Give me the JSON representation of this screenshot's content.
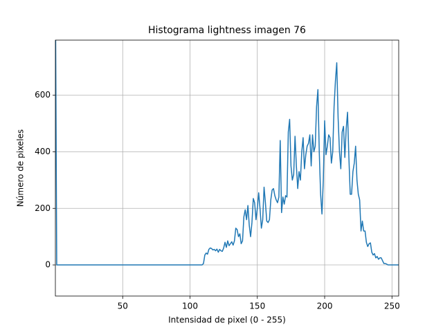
{
  "chart_data": {
    "type": "line",
    "title": "Histograma lightness imagen 76",
    "xlabel": "Intensidad de pixel (0 - 255)",
    "ylabel": "Número de pixeles",
    "color": "#1f77b4",
    "grid": true,
    "xlim": [
      0,
      255
    ],
    "xticks": [
      50,
      100,
      150,
      200,
      250
    ],
    "ylim": [
      -110,
      795
    ],
    "yticks": [
      0,
      200,
      400,
      600
    ],
    "x": [
      0,
      1,
      2,
      3,
      4,
      5,
      6,
      7,
      8,
      9,
      10,
      11,
      12,
      13,
      14,
      15,
      16,
      17,
      18,
      19,
      20,
      21,
      22,
      23,
      24,
      25,
      26,
      27,
      28,
      29,
      30,
      31,
      32,
      33,
      34,
      35,
      36,
      37,
      38,
      39,
      40,
      41,
      42,
      43,
      44,
      45,
      46,
      47,
      48,
      49,
      50,
      51,
      52,
      53,
      54,
      55,
      56,
      57,
      58,
      59,
      60,
      61,
      62,
      63,
      64,
      65,
      66,
      67,
      68,
      69,
      70,
      71,
      72,
      73,
      74,
      75,
      76,
      77,
      78,
      79,
      80,
      81,
      82,
      83,
      84,
      85,
      86,
      87,
      88,
      89,
      90,
      91,
      92,
      93,
      94,
      95,
      96,
      97,
      98,
      99,
      100,
      101,
      102,
      103,
      104,
      105,
      106,
      107,
      108,
      109,
      110,
      111,
      112,
      113,
      114,
      115,
      116,
      117,
      118,
      119,
      120,
      121,
      122,
      123,
      124,
      125,
      126,
      127,
      128,
      129,
      130,
      131,
      132,
      133,
      134,
      135,
      136,
      137,
      138,
      139,
      140,
      141,
      142,
      143,
      144,
      145,
      146,
      147,
      148,
      149,
      150,
      151,
      152,
      153,
      154,
      155,
      156,
      157,
      158,
      159,
      160,
      161,
      162,
      163,
      164,
      165,
      166,
      167,
      168,
      169,
      170,
      171,
      172,
      173,
      174,
      175,
      176,
      177,
      178,
      179,
      180,
      181,
      182,
      183,
      184,
      185,
      186,
      187,
      188,
      189,
      190,
      191,
      192,
      193,
      194,
      195,
      196,
      197,
      198,
      199,
      200,
      201,
      202,
      203,
      204,
      205,
      206,
      207,
      208,
      209,
      210,
      211,
      212,
      213,
      214,
      215,
      216,
      217,
      218,
      219,
      220,
      221,
      222,
      223,
      224,
      225,
      226,
      227,
      228,
      229,
      230,
      231,
      232,
      233,
      234,
      235,
      236,
      237,
      238,
      239,
      240,
      241,
      242,
      243,
      244,
      245,
      246,
      247,
      248,
      249,
      250,
      251,
      252,
      253,
      254,
      255
    ],
    "values": [
      1000,
      0,
      0,
      0,
      0,
      0,
      0,
      0,
      0,
      0,
      0,
      0,
      0,
      0,
      0,
      0,
      0,
      0,
      0,
      0,
      0,
      0,
      0,
      0,
      0,
      0,
      0,
      0,
      0,
      0,
      0,
      0,
      0,
      0,
      0,
      0,
      0,
      0,
      0,
      0,
      0,
      0,
      0,
      0,
      0,
      0,
      0,
      0,
      0,
      0,
      0,
      0,
      0,
      0,
      0,
      0,
      0,
      0,
      0,
      0,
      0,
      0,
      0,
      0,
      0,
      0,
      0,
      0,
      0,
      0,
      0,
      0,
      0,
      0,
      0,
      0,
      0,
      0,
      0,
      0,
      0,
      0,
      0,
      0,
      0,
      0,
      0,
      0,
      0,
      0,
      0,
      0,
      0,
      0,
      0,
      0,
      0,
      0,
      0,
      0,
      0,
      0,
      0,
      0,
      0,
      0,
      0,
      0,
      0,
      0,
      5,
      35,
      42,
      38,
      55,
      60,
      58,
      53,
      55,
      50,
      56,
      45,
      55,
      50,
      48,
      60,
      80,
      62,
      85,
      68,
      75,
      82,
      70,
      85,
      130,
      125,
      100,
      110,
      75,
      85,
      170,
      195,
      160,
      210,
      140,
      100,
      150,
      235,
      220,
      160,
      200,
      255,
      200,
      130,
      160,
      275,
      220,
      155,
      150,
      160,
      230,
      265,
      270,
      245,
      230,
      220,
      240,
      440,
      185,
      240,
      215,
      245,
      240,
      470,
      515,
      350,
      300,
      320,
      455,
      350,
      270,
      330,
      300,
      400,
      450,
      340,
      390,
      420,
      430,
      460,
      350,
      460,
      400,
      420,
      560,
      620,
      400,
      250,
      180,
      300,
      510,
      390,
      420,
      460,
      450,
      360,
      400,
      560,
      650,
      715,
      520,
      400,
      340,
      470,
      490,
      380,
      480,
      540,
      380,
      250,
      250,
      330,
      360,
      420,
      300,
      250,
      230,
      120,
      155,
      120,
      120,
      80,
      65,
      75,
      78,
      45,
      35,
      40,
      25,
      30,
      20,
      25,
      25,
      15,
      5,
      5,
      3,
      0,
      0,
      0,
      0,
      0,
      0,
      0,
      0,
      0
    ]
  }
}
